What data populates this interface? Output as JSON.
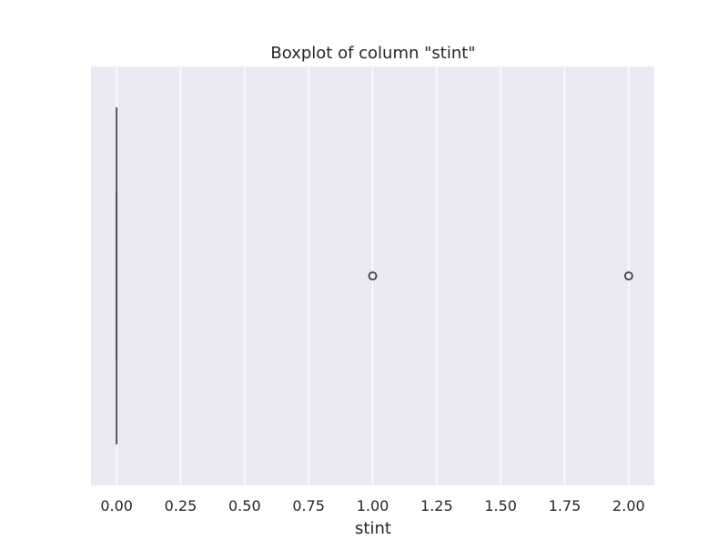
{
  "chart_data": {
    "type": "boxplot",
    "title": "Boxplot of column \"stint\"",
    "xlabel": "stint",
    "ylabel": "",
    "orientation": "horizontal",
    "xlim": [
      -0.1,
      2.1
    ],
    "x_ticks": [
      0.0,
      0.25,
      0.5,
      0.75,
      1.0,
      1.25,
      1.5,
      1.75,
      2.0
    ],
    "x_tick_labels": [
      "0.00",
      "0.25",
      "0.50",
      "0.75",
      "1.00",
      "1.25",
      "1.50",
      "1.75",
      "2.00"
    ],
    "grid": true,
    "box": {
      "min": 0.0,
      "q1": 0.0,
      "median": 0.0,
      "q3": 0.0,
      "max": 0.0,
      "outliers": [
        1.0,
        2.0
      ]
    },
    "colors": {
      "background": "#eaeaf2",
      "grid": "#ffffff",
      "box_line": "#3f3f3f",
      "text": "#262626"
    }
  }
}
